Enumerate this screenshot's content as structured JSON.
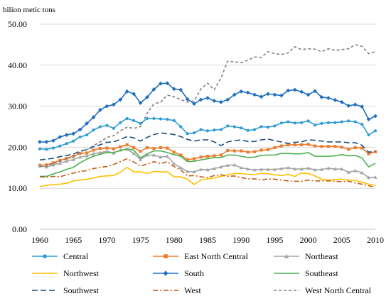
{
  "chart_data": {
    "type": "line",
    "ylabel": "bilion metic tons",
    "ylim": [
      0,
      50
    ],
    "yticks": [
      0,
      10,
      20,
      30,
      40,
      50
    ],
    "ytick_labels": [
      "0.00",
      "10.00",
      "20.00",
      "30.00",
      "40.00",
      "50.00"
    ],
    "xlim": [
      1960,
      2010
    ],
    "xticks": [
      1960,
      1965,
      1970,
      1975,
      1980,
      1985,
      1990,
      1995,
      2000,
      2005,
      2010
    ],
    "xtick_labels": [
      "1960",
      "1965",
      "1970",
      "1975",
      "1980",
      "1985",
      "1990",
      "1995",
      "2000",
      "2005",
      "2010"
    ],
    "grid": "horizontal",
    "legend_position": "bottom",
    "x": [
      1960,
      1961,
      1962,
      1963,
      1964,
      1965,
      1966,
      1967,
      1968,
      1969,
      1970,
      1971,
      1972,
      1973,
      1974,
      1975,
      1976,
      1977,
      1978,
      1979,
      1980,
      1981,
      1982,
      1983,
      1984,
      1985,
      1986,
      1987,
      1988,
      1989,
      1990,
      1991,
      1992,
      1993,
      1994,
      1995,
      1996,
      1997,
      1998,
      1999,
      2000,
      2001,
      2002,
      2003,
      2004,
      2005,
      2006,
      2007,
      2008,
      2009,
      2010
    ],
    "series": [
      {
        "name": "Central",
        "color": "#2E9BD6",
        "dash": "solid",
        "marker": "circle",
        "values": [
          19.6,
          19.5,
          19.8,
          20.3,
          20.9,
          21.5,
          22.5,
          23.0,
          24.2,
          25.0,
          25.3,
          24.6,
          26.0,
          27.0,
          26.5,
          25.8,
          27.0,
          27.0,
          26.9,
          26.8,
          26.5,
          25.0,
          23.3,
          23.5,
          24.3,
          24.0,
          24.2,
          24.3,
          25.2,
          25.0,
          24.7,
          24.1,
          24.3,
          25.0,
          24.9,
          25.2,
          25.9,
          26.2,
          25.9,
          26.0,
          26.4,
          25.4,
          25.8,
          26.0,
          26.0,
          26.2,
          26.4,
          26.2,
          25.6,
          23.0,
          24.0
        ]
      },
      {
        "name": "East North Central",
        "color": "#ED7D31",
        "dash": "solid",
        "marker": "square",
        "values": [
          15.6,
          15.7,
          16.2,
          16.8,
          17.3,
          17.8,
          18.5,
          18.6,
          19.3,
          19.7,
          19.8,
          19.6,
          20.1,
          20.6,
          19.9,
          19.0,
          19.9,
          19.7,
          19.9,
          19.8,
          18.8,
          18.1,
          17.0,
          17.2,
          17.6,
          17.8,
          17.9,
          18.1,
          19.2,
          19.1,
          19.1,
          18.8,
          18.9,
          19.3,
          19.4,
          19.9,
          20.3,
          20.6,
          20.6,
          20.6,
          20.7,
          20.3,
          20.2,
          20.2,
          20.2,
          20.0,
          19.5,
          19.9,
          19.8,
          18.4,
          18.9
        ]
      },
      {
        "name": "Northeast",
        "color": "#A5A5A5",
        "dash": "solid",
        "marker": "triangle",
        "values": [
          15.4,
          15.2,
          15.7,
          16.1,
          16.6,
          17.0,
          17.6,
          17.9,
          18.4,
          18.7,
          19.0,
          18.6,
          19.3,
          19.5,
          18.5,
          17.0,
          18.1,
          18.1,
          17.6,
          17.8,
          16.0,
          15.0,
          14.1,
          14.0,
          14.6,
          14.5,
          14.8,
          15.2,
          15.6,
          15.7,
          15.0,
          14.7,
          14.5,
          14.6,
          14.6,
          14.6,
          14.8,
          15.0,
          14.7,
          14.7,
          14.9,
          14.5,
          14.6,
          14.9,
          14.7,
          14.7,
          13.9,
          14.3,
          13.8,
          12.6,
          12.7
        ]
      },
      {
        "name": "Northwest",
        "color": "#FFC000",
        "dash": "solid",
        "marker": "none",
        "values": [
          10.4,
          10.7,
          10.9,
          11.0,
          11.2,
          11.8,
          12.0,
          12.2,
          12.5,
          12.9,
          13.0,
          13.1,
          13.9,
          15.1,
          14.0,
          14.0,
          13.6,
          14.1,
          14.0,
          14.0,
          12.8,
          12.8,
          12.2,
          10.9,
          12.0,
          12.3,
          12.5,
          12.9,
          13.3,
          13.6,
          13.6,
          13.4,
          13.3,
          13.7,
          13.5,
          13.3,
          13.1,
          13.4,
          12.9,
          13.7,
          13.6,
          13.0,
          12.2,
          12.0,
          12.1,
          12.2,
          12.0,
          11.9,
          11.5,
          11.0,
          10.7
        ]
      },
      {
        "name": "South",
        "color": "#1F6FBF",
        "dash": "solid",
        "marker": "diamond",
        "values": [
          21.3,
          21.3,
          21.6,
          22.5,
          23.0,
          23.3,
          24.3,
          25.8,
          27.3,
          29.1,
          30.0,
          30.4,
          31.6,
          33.6,
          33.0,
          30.8,
          32.2,
          34.1,
          35.5,
          35.6,
          34.2,
          34.0,
          31.7,
          30.6,
          31.6,
          32.0,
          31.3,
          31.0,
          31.6,
          32.8,
          33.6,
          33.3,
          32.8,
          32.3,
          33.0,
          32.8,
          32.6,
          33.8,
          34.0,
          33.5,
          32.8,
          33.7,
          32.2,
          32.0,
          31.5,
          31.0,
          30.1,
          30.4,
          29.9,
          26.8,
          27.6
        ]
      },
      {
        "name": "Southeast",
        "color": "#4CAF50",
        "dash": "solid",
        "marker": "none",
        "values": [
          12.9,
          12.9,
          13.5,
          14.0,
          14.6,
          15.1,
          16.2,
          17.1,
          17.8,
          18.3,
          18.7,
          18.7,
          19.2,
          19.6,
          19.3,
          17.4,
          18.4,
          19.1,
          19.1,
          18.7,
          18.2,
          17.8,
          16.5,
          16.6,
          16.9,
          17.2,
          17.5,
          17.5,
          18.1,
          18.1,
          17.8,
          17.5,
          17.6,
          18.0,
          18.1,
          18.1,
          18.5,
          18.5,
          18.4,
          18.4,
          18.7,
          17.8,
          17.8,
          17.8,
          17.9,
          18.2,
          17.9,
          18.0,
          17.4,
          15.2,
          16.1
        ]
      },
      {
        "name": "Southwest",
        "color": "#1F4E79",
        "dash": "long-dash",
        "marker": "none",
        "values": [
          16.9,
          17.1,
          17.3,
          17.7,
          18.0,
          18.3,
          19.1,
          19.4,
          20.1,
          20.6,
          21.2,
          21.3,
          21.9,
          22.6,
          22.3,
          21.5,
          22.4,
          23.1,
          23.5,
          23.3,
          23.1,
          22.6,
          21.9,
          21.5,
          21.8,
          21.8,
          21.3,
          20.4,
          21.3,
          21.6,
          21.8,
          21.4,
          21.4,
          21.8,
          22.0,
          21.6,
          21.3,
          20.9,
          21.2,
          21.3,
          21.8,
          21.7,
          21.5,
          21.3,
          21.3,
          21.3,
          21.1,
          21.1,
          20.5,
          18.8,
          19.0
        ]
      },
      {
        "name": "West",
        "color": "#C55A11",
        "dash": "dash-dot",
        "marker": "none",
        "values": [
          12.8,
          12.7,
          12.9,
          12.8,
          13.3,
          13.7,
          14.1,
          14.3,
          14.8,
          15.1,
          15.3,
          15.8,
          16.5,
          17.2,
          16.4,
          15.4,
          15.9,
          16.5,
          16.0,
          16.5,
          15.3,
          14.5,
          13.0,
          13.1,
          12.8,
          12.6,
          13.1,
          13.3,
          12.9,
          13.0,
          12.6,
          12.3,
          12.3,
          12.0,
          12.3,
          12.2,
          12.0,
          11.8,
          11.7,
          11.7,
          12.0,
          11.8,
          11.8,
          11.8,
          11.7,
          11.6,
          11.7,
          11.3,
          11.0,
          10.6,
          10.3
        ]
      },
      {
        "name": "West North Central",
        "color": "#808080",
        "dash": "dash",
        "marker": "none",
        "values": [
          15.4,
          15.4,
          16.0,
          16.6,
          17.2,
          17.7,
          18.9,
          19.4,
          20.4,
          21.3,
          22.4,
          22.8,
          24.0,
          24.9,
          24.6,
          25.0,
          28.3,
          30.6,
          31.0,
          32.7,
          32.3,
          31.6,
          31.0,
          31.3,
          34.2,
          35.6,
          34.0,
          36.9,
          41.0,
          40.8,
          40.6,
          41.2,
          42.0,
          41.9,
          43.3,
          42.8,
          42.6,
          43.0,
          44.5,
          43.8,
          44.0,
          43.9,
          43.3,
          44.0,
          43.6,
          43.8,
          44.0,
          45.0,
          44.6,
          42.8,
          43.3
        ]
      }
    ]
  }
}
